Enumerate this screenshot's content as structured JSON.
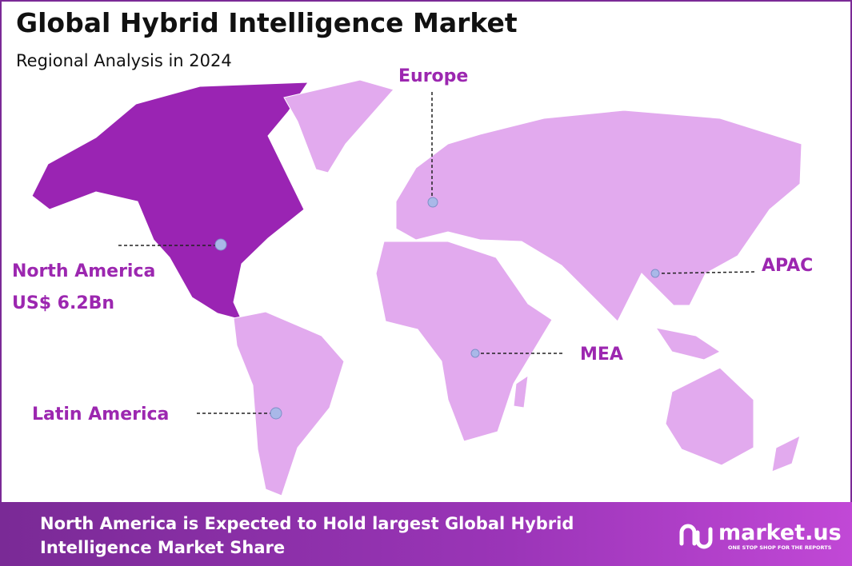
{
  "header": {
    "title": "Global Hybrid Intelligence Market",
    "subtitle": "Regional Analysis in 2024"
  },
  "regions": [
    {
      "label": "Europe"
    },
    {
      "label": "North America",
      "value": "US$ 6.2Bn"
    },
    {
      "label": "APAC"
    },
    {
      "label": "MEA"
    },
    {
      "label": "Latin America"
    }
  ],
  "footer": {
    "lines": [
      "North America is Expected to Hold largest Global Hybrid",
      "Intelligence  Market Share"
    ],
    "brand": "market.us",
    "tagline": "ONE STOP SHOP FOR THE REPORTS"
  }
}
